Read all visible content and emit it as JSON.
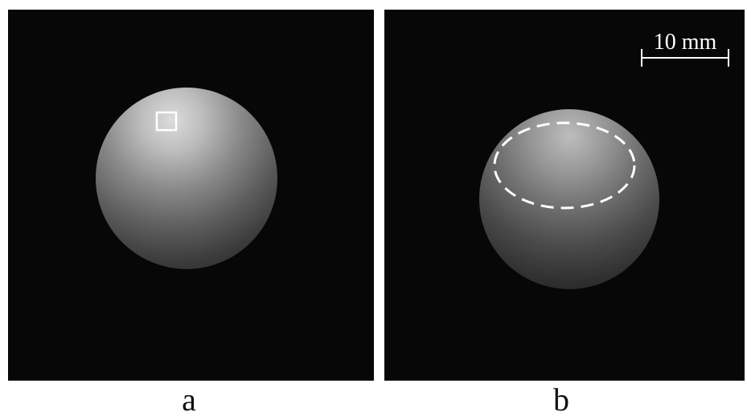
{
  "panels": [
    {
      "id": "a",
      "caption": "a"
    },
    {
      "id": "b",
      "caption": "b"
    }
  ],
  "scale_bar": {
    "label": "10 mm"
  },
  "colors": {
    "background": "#070707",
    "sphere_highlight": "#d9d9d9",
    "sphere_shadow": "#2a2a2a",
    "annotation": "#ffffff"
  }
}
